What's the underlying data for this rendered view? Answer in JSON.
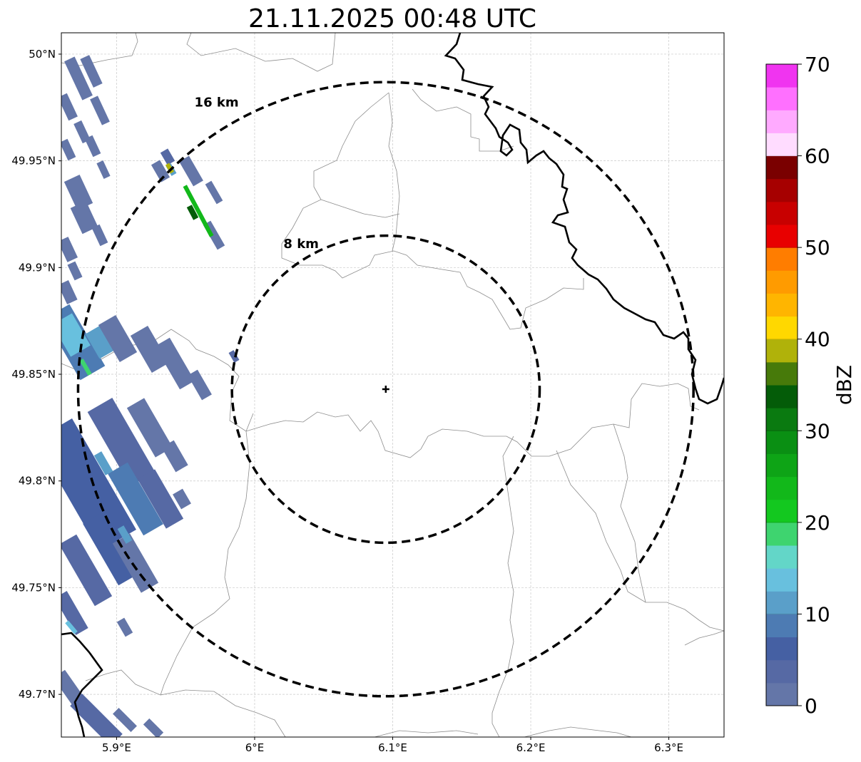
{
  "title": "21.11.2025 00:48 UTC",
  "map": {
    "lon_range": [
      5.86,
      6.34
    ],
    "lat_range": [
      49.68,
      50.01
    ],
    "x_ticks": [
      {
        "value": 5.9,
        "label": "5.9°E"
      },
      {
        "value": 6.0,
        "label": "6°E"
      },
      {
        "value": 6.1,
        "label": "6.1°E"
      },
      {
        "value": 6.2,
        "label": "6.2°E"
      },
      {
        "value": 6.3,
        "label": "6.3°E"
      }
    ],
    "y_ticks": [
      {
        "value": 50.0,
        "label": "50°N"
      },
      {
        "value": 49.95,
        "label": "49.95°N"
      },
      {
        "value": 49.9,
        "label": "49.9°N"
      },
      {
        "value": 49.85,
        "label": "49.85°N"
      },
      {
        "value": 49.8,
        "label": "49.8°N"
      },
      {
        "value": 49.75,
        "label": "49.75°N"
      },
      {
        "value": 49.7,
        "label": "49.7°N"
      }
    ],
    "gridlines": true,
    "radar_site": {
      "lon": 6.095,
      "lat": 49.843,
      "marker": "plus-icon"
    },
    "range_rings": [
      {
        "radius_km": 8,
        "label": "8 km"
      },
      {
        "radius_km": 16,
        "label": "16 km"
      }
    ]
  },
  "colorbar": {
    "label": "dBZ",
    "min": 0,
    "max": 70,
    "ticks": [
      {
        "value": 0,
        "label": "0"
      },
      {
        "value": 10,
        "label": "10"
      },
      {
        "value": 20,
        "label": "20"
      },
      {
        "value": 30,
        "label": "30"
      },
      {
        "value": 40,
        "label": "40"
      },
      {
        "value": 50,
        "label": "50"
      },
      {
        "value": 60,
        "label": "60"
      },
      {
        "value": 70,
        "label": "70"
      }
    ],
    "bin_width": 2.5,
    "colors": [
      "#6476a8",
      "#5669a4",
      "#4560a3",
      "#4d7bb3",
      "#5a9fc9",
      "#68c0de",
      "#63d6c8",
      "#3ed46f",
      "#13c81f",
      "#12b81a",
      "#0ea416",
      "#0a8f13",
      "#0a7a10",
      "#045c08",
      "#477a0a",
      "#b0b20a",
      "#ffd800",
      "#ffb500",
      "#ff9b00",
      "#ff7d00",
      "#e80000",
      "#c80000",
      "#a60000",
      "#7a0000",
      "#ffdcff",
      "#ffaaff",
      "#ff70ff",
      "#f034f0"
    ]
  },
  "colors": {
    "border": "#000000",
    "boundary": "#8c8c8c",
    "grid": "#c8c8c8"
  }
}
